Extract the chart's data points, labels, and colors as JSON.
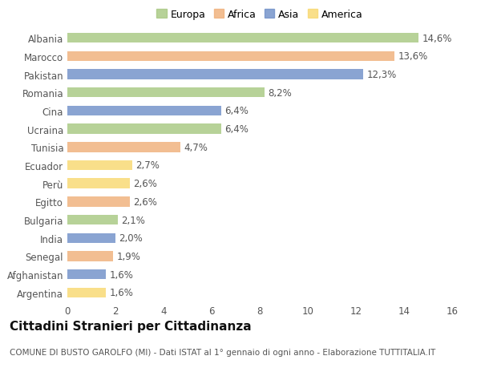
{
  "countries": [
    "Albania",
    "Marocco",
    "Pakistan",
    "Romania",
    "Cina",
    "Ucraina",
    "Tunisia",
    "Ecuador",
    "Perù",
    "Egitto",
    "Bulgaria",
    "India",
    "Senegal",
    "Afghanistan",
    "Argentina"
  ],
  "values": [
    14.6,
    13.6,
    12.3,
    8.2,
    6.4,
    6.4,
    4.7,
    2.7,
    2.6,
    2.6,
    2.1,
    2.0,
    1.9,
    1.6,
    1.6
  ],
  "continents": [
    "Europa",
    "Africa",
    "Asia",
    "Europa",
    "Asia",
    "Europa",
    "Africa",
    "America",
    "America",
    "Africa",
    "Europa",
    "Asia",
    "Africa",
    "Asia",
    "America"
  ],
  "colors": {
    "Europa": "#a8c882",
    "Africa": "#f0b07a",
    "Asia": "#7090c8",
    "America": "#f8d870"
  },
  "legend_order": [
    "Europa",
    "Africa",
    "Asia",
    "America"
  ],
  "title": "Cittadini Stranieri per Cittadinanza",
  "subtitle": "COMUNE DI BUSTO GAROLFO (MI) - Dati ISTAT al 1° gennaio di ogni anno - Elaborazione TUTTITALIA.IT",
  "xlim": [
    0,
    16
  ],
  "xticks": [
    0,
    2,
    4,
    6,
    8,
    10,
    12,
    14,
    16
  ],
  "background_color": "#ffffff",
  "plot_bg_color": "#ffffff",
  "bar_height": 0.55,
  "label_fontsize": 8.5,
  "tick_fontsize": 8.5,
  "title_fontsize": 11,
  "subtitle_fontsize": 7.5,
  "legend_fontsize": 9
}
